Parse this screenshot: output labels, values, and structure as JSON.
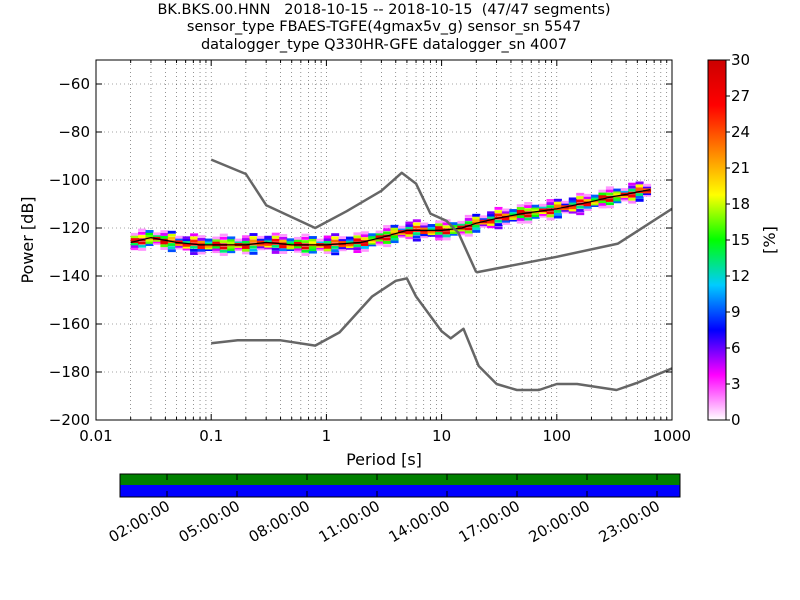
{
  "title_lines": [
    "BK.BKS.00.HNN   2018-10-15 -- 2018-10-15  (47/47 segments)",
    "sensor_type FBAES-TGFE(4gmax5v_g) sensor_sn 5547",
    "datalogger_type Q330HR-GFE datalogger_sn 4007"
  ],
  "chart_data": {
    "type": "heatmap",
    "xlabel": "Period [s]",
    "ylabel": "Power [dB]",
    "x_scale": "log",
    "xlim": [
      0.01,
      1000
    ],
    "ylim": [
      -200,
      -50
    ],
    "x_tick_labels": [
      "0.01",
      "0.1",
      "1",
      "10",
      "100",
      "1000"
    ],
    "x_ticks": [
      0.01,
      0.1,
      1,
      10,
      100,
      1000
    ],
    "y_ticks": [
      -60,
      -80,
      -100,
      -120,
      -140,
      -160,
      -180,
      -200
    ],
    "grid": true,
    "colorbar": {
      "label": "[%]",
      "range": [
        0,
        30
      ],
      "ticks": [
        0,
        3,
        6,
        9,
        12,
        15,
        18,
        21,
        24,
        27,
        30
      ],
      "colormap": [
        "#ffffff",
        "#ff00ff",
        "#0000ff",
        "#00ccff",
        "#00ff00",
        "#ffff00",
        "#ff8000",
        "#ff0000",
        "#cc0000"
      ]
    },
    "psd_band": {
      "series": [
        {
          "name": "median",
          "x": [
            0.02,
            0.03,
            0.05,
            0.08,
            0.1,
            0.2,
            0.3,
            0.5,
            1,
            2,
            3,
            5,
            7,
            10,
            15,
            20,
            30,
            50,
            100,
            200,
            300,
            400,
            500,
            650
          ],
          "y": [
            -126,
            -124,
            -126,
            -127,
            -127,
            -127,
            -126,
            -127,
            -127,
            -126,
            -124,
            -121,
            -121,
            -121,
            -120,
            -118,
            -116,
            -114,
            -112,
            -109,
            -107,
            -106,
            -105,
            -104
          ]
        }
      ],
      "spread_db": 2.5
    },
    "noise_models": [
      {
        "x": [
          0.1,
          0.2,
          0.3,
          0.8,
          1.5,
          3,
          4.5,
          6,
          8,
          11,
          14,
          20
        ],
        "y": [
          -91.5,
          -97.5,
          -110.5,
          -120,
          -113,
          -104.5,
          -97,
          -101.5,
          -114,
          -117,
          -122,
          -138.5
        ]
      },
      {
        "x": [
          20,
          100,
          340,
          1000
        ],
        "y": [
          -138.5,
          -132,
          -126.5,
          -112
        ]
      },
      {
        "x": [
          0.1,
          0.17,
          0.4,
          0.8,
          1.3,
          2.5,
          4,
          5,
          6,
          10,
          12,
          15.5,
          21,
          30,
          45,
          70,
          100,
          150,
          330,
          500,
          1000
        ],
        "y": [
          -168,
          -166.8,
          -166.8,
          -169,
          -163.5,
          -148.5,
          -142,
          -141,
          -148.5,
          -163,
          -166,
          -162,
          -177.5,
          -185,
          -187.5,
          -187.5,
          -185,
          -185,
          -187.5,
          -184.5,
          -178.5
        ]
      }
    ],
    "availability": {
      "tick_labels": [
        "02:00:00",
        "05:00:00",
        "08:00:00",
        "11:00:00",
        "14:00:00",
        "17:00:00",
        "20:00:00",
        "23:00:00"
      ],
      "data_color": "#008000",
      "used_color": "#0000ff",
      "fraction_covered": 1.0
    }
  }
}
